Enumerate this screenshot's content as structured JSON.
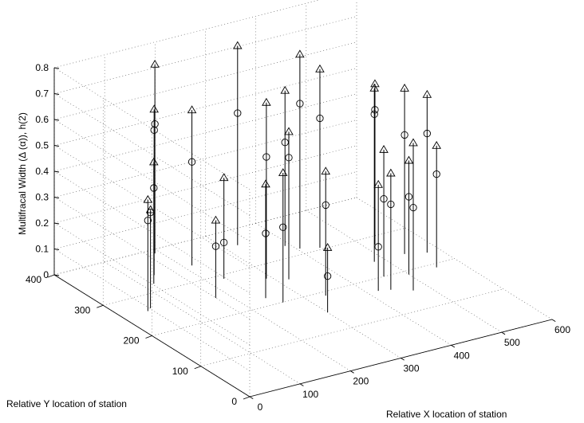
{
  "chart_data": {
    "type": "scatter",
    "subtype": "3d-stem",
    "title": "",
    "xlabel": "Relative X location of station",
    "ylabel": "Relative Y location of station",
    "zlabel": "Multifracal Width (Δ (α)), h(2)",
    "xlim": [
      0,
      600
    ],
    "ylim": [
      0,
      400
    ],
    "zlim": [
      0,
      0.8
    ],
    "x_ticks": [
      "0",
      "100",
      "200",
      "300",
      "400",
      "500",
      "600"
    ],
    "y_ticks": [
      "0",
      "100",
      "200",
      "300",
      "400"
    ],
    "z_ticks": [
      "0",
      "0.1",
      "0.2",
      "0.3",
      "0.4",
      "0.5",
      "0.6",
      "0.7",
      "0.8"
    ],
    "grid": true,
    "series": [
      {
        "marker": "triangle",
        "points": [
          {
            "x": 50,
            "y": 260,
            "z": 0.43
          },
          {
            "x": 60,
            "y": 265,
            "z": 0.38
          },
          {
            "x": 120,
            "y": 320,
            "z": 0.47
          },
          {
            "x": 140,
            "y": 340,
            "z": 0.64
          },
          {
            "x": 175,
            "y": 250,
            "z": 0.3
          },
          {
            "x": 190,
            "y": 390,
            "z": 0.73
          },
          {
            "x": 215,
            "y": 340,
            "z": 0.6
          },
          {
            "x": 230,
            "y": 290,
            "z": 0.39
          },
          {
            "x": 245,
            "y": 220,
            "z": 0.44
          },
          {
            "x": 260,
            "y": 200,
            "z": 0.5
          },
          {
            "x": 290,
            "y": 265,
            "z": 0.68
          },
          {
            "x": 300,
            "y": 150,
            "z": 0.25
          },
          {
            "x": 320,
            "y": 250,
            "z": 0.57
          },
          {
            "x": 325,
            "y": 360,
            "z": 0.77
          },
          {
            "x": 335,
            "y": 190,
            "z": 0.48
          },
          {
            "x": 390,
            "y": 330,
            "z": 0.6
          },
          {
            "x": 405,
            "y": 315,
            "z": 0.75
          },
          {
            "x": 420,
            "y": 170,
            "z": 0.41
          },
          {
            "x": 435,
            "y": 305,
            "z": 0.69
          },
          {
            "x": 440,
            "y": 165,
            "z": 0.45
          },
          {
            "x": 460,
            "y": 200,
            "z": 0.49
          },
          {
            "x": 470,
            "y": 150,
            "z": 0.57
          },
          {
            "x": 480,
            "y": 240,
            "z": 0.67
          },
          {
            "x": 500,
            "y": 190,
            "z": 0.44
          },
          {
            "x": 520,
            "y": 280,
            "z": 0.62
          },
          {
            "x": 540,
            "y": 240,
            "z": 0.64
          },
          {
            "x": 555,
            "y": 190,
            "z": 0.47
          },
          {
            "x": 575,
            "y": 230,
            "z": 0.61
          }
        ]
      },
      {
        "marker": "circle",
        "points": [
          {
            "x": 50,
            "y": 260,
            "z": 0.35
          },
          {
            "x": 60,
            "y": 265,
            "z": 0.37
          },
          {
            "x": 120,
            "y": 320,
            "z": 0.37
          },
          {
            "x": 140,
            "y": 340,
            "z": 0.56
          },
          {
            "x": 175,
            "y": 250,
            "z": 0.2
          },
          {
            "x": 190,
            "y": 390,
            "z": 0.5
          },
          {
            "x": 215,
            "y": 340,
            "z": 0.4
          },
          {
            "x": 230,
            "y": 290,
            "z": 0.14
          },
          {
            "x": 245,
            "y": 220,
            "z": 0.25
          },
          {
            "x": 260,
            "y": 200,
            "z": 0.29
          },
          {
            "x": 290,
            "y": 265,
            "z": 0.47
          },
          {
            "x": 300,
            "y": 150,
            "z": 0.14
          },
          {
            "x": 320,
            "y": 250,
            "z": 0.47
          },
          {
            "x": 325,
            "y": 360,
            "z": 0.51
          },
          {
            "x": 335,
            "y": 190,
            "z": 0.35
          },
          {
            "x": 390,
            "y": 330,
            "z": 0.4
          },
          {
            "x": 405,
            "y": 315,
            "z": 0.56
          },
          {
            "x": 420,
            "y": 170,
            "z": 0.17
          },
          {
            "x": 435,
            "y": 305,
            "z": 0.5
          },
          {
            "x": 440,
            "y": 165,
            "z": 0.33
          },
          {
            "x": 460,
            "y": 200,
            "z": 0.3
          },
          {
            "x": 470,
            "y": 150,
            "z": 0.32
          },
          {
            "x": 480,
            "y": 240,
            "z": 0.57
          },
          {
            "x": 500,
            "y": 190,
            "z": 0.3
          },
          {
            "x": 520,
            "y": 280,
            "z": 0.52
          },
          {
            "x": 540,
            "y": 240,
            "z": 0.46
          },
          {
            "x": 555,
            "y": 190,
            "z": 0.36
          },
          {
            "x": 575,
            "y": 230,
            "z": 0.46
          }
        ]
      }
    ]
  }
}
